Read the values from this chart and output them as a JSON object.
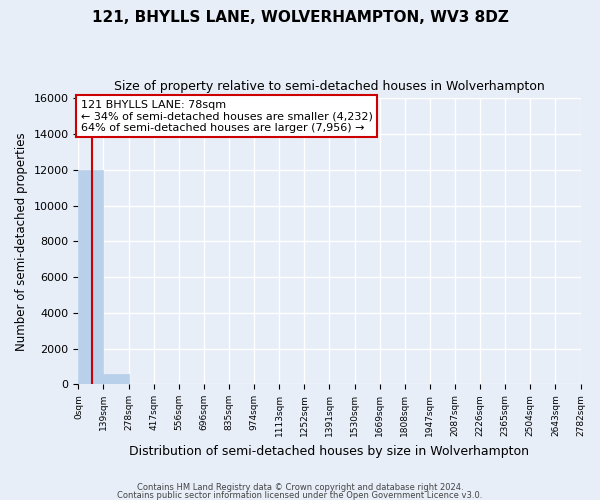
{
  "title": "121, BHYLLS LANE, WOLVERHAMPTON, WV3 8DZ",
  "subtitle": "Size of property relative to semi-detached houses in Wolverhampton",
  "xlabel": "Distribution of semi-detached houses by size in Wolverhampton",
  "ylabel": "Number of semi-detached properties",
  "bar_values": [
    12000,
    550,
    0,
    0,
    0,
    0,
    0,
    0,
    0,
    0,
    0,
    0,
    0,
    0,
    0,
    0,
    0,
    0,
    0,
    0
  ],
  "bin_edges": [
    0,
    139,
    278,
    417,
    556,
    696,
    835,
    974,
    1113,
    1252,
    1391,
    1530,
    1669,
    1808,
    1947,
    2087,
    2226,
    2365,
    2504,
    2643,
    2782
  ],
  "tick_labels": [
    "0sqm",
    "139sqm",
    "278sqm",
    "417sqm",
    "556sqm",
    "696sqm",
    "835sqm",
    "974sqm",
    "1113sqm",
    "1252sqm",
    "1391sqm",
    "1530sqm",
    "1669sqm",
    "1808sqm",
    "1947sqm",
    "2087sqm",
    "2226sqm",
    "2365sqm",
    "2504sqm",
    "2643sqm",
    "2782sqm"
  ],
  "ylim": [
    0,
    16000
  ],
  "yticks": [
    0,
    2000,
    4000,
    6000,
    8000,
    10000,
    12000,
    14000,
    16000
  ],
  "bar_color": "#b8d0ea",
  "bar_edge_color": "#b8d0ea",
  "property_line_x": 78,
  "annotation_title": "121 BHYLLS LANE: 78sqm",
  "annotation_line1": "← 34% of semi-detached houses are smaller (4,232)",
  "annotation_line2": "64% of semi-detached houses are larger (7,956) →",
  "annotation_box_color": "#ffffff",
  "annotation_box_edge_color": "#cc0000",
  "property_line_color": "#cc0000",
  "background_color": "#e8eef8",
  "grid_color": "#ffffff",
  "footer_line1": "Contains HM Land Registry data © Crown copyright and database right 2024.",
  "footer_line2": "Contains public sector information licensed under the Open Government Licence v3.0."
}
